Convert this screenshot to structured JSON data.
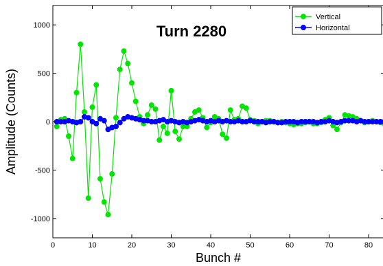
{
  "chart_data": {
    "type": "line",
    "title": "Turn 2280",
    "xlabel": "Bunch #",
    "ylabel": "Amplitude (Counts)",
    "xlim": [
      0,
      84
    ],
    "ylim": [
      -1200,
      1200
    ],
    "xticks": [
      0,
      10,
      20,
      30,
      40,
      50,
      60,
      70,
      80
    ],
    "yticks": [
      -1000,
      -500,
      0,
      500,
      1000
    ],
    "xtick_labels": [
      "0",
      "10",
      "20",
      "30",
      "40",
      "50",
      "60",
      "70",
      "80"
    ],
    "ytick_labels": [
      "-1000",
      "-500",
      "0",
      "500",
      "1000"
    ],
    "grid": false,
    "legend": "top-right",
    "series": [
      {
        "name": "Vertical",
        "color": "#00e600",
        "x": [
          1,
          2,
          3,
          4,
          5,
          6,
          7,
          8,
          9,
          10,
          11,
          12,
          13,
          14,
          15,
          16,
          17,
          18,
          19,
          20,
          21,
          22,
          23,
          24,
          25,
          26,
          27,
          28,
          29,
          30,
          31,
          32,
          33,
          34,
          35,
          36,
          37,
          38,
          39,
          40,
          41,
          42,
          43,
          44,
          45,
          46,
          47,
          48,
          49,
          50,
          51,
          52,
          53,
          54,
          55,
          56,
          57,
          58,
          59,
          60,
          61,
          62,
          63,
          64,
          65,
          66,
          67,
          68,
          69,
          70,
          71,
          72,
          73,
          74,
          75,
          76,
          77,
          78,
          79,
          80,
          81,
          82,
          83,
          84
        ],
        "y": [
          -50,
          20,
          30,
          -150,
          -380,
          300,
          800,
          100,
          -790,
          150,
          380,
          -590,
          -830,
          -960,
          -540,
          40,
          540,
          730,
          600,
          400,
          210,
          50,
          -20,
          70,
          170,
          130,
          -190,
          -50,
          -120,
          320,
          -100,
          -180,
          -50,
          -50,
          30,
          100,
          120,
          40,
          -60,
          -10,
          50,
          30,
          -130,
          -170,
          120,
          20,
          30,
          160,
          140,
          20,
          10,
          -20,
          0,
          10,
          10,
          0,
          -10,
          0,
          -10,
          -20,
          -30,
          -20,
          -20,
          -10,
          0,
          -20,
          -20,
          -10,
          20,
          40,
          -40,
          -80,
          -10,
          70,
          60,
          50,
          30,
          10,
          -10,
          0,
          10,
          0,
          -10,
          -20
        ]
      },
      {
        "name": "Horizontal",
        "color": "#0000ff",
        "x": [
          1,
          2,
          3,
          4,
          5,
          6,
          7,
          8,
          9,
          10,
          11,
          12,
          13,
          14,
          15,
          16,
          17,
          18,
          19,
          20,
          21,
          22,
          23,
          24,
          25,
          26,
          27,
          28,
          29,
          30,
          31,
          32,
          33,
          34,
          35,
          36,
          37,
          38,
          39,
          40,
          41,
          42,
          43,
          44,
          45,
          46,
          47,
          48,
          49,
          50,
          51,
          52,
          53,
          54,
          55,
          56,
          57,
          58,
          59,
          60,
          61,
          62,
          63,
          64,
          65,
          66,
          67,
          68,
          69,
          70,
          71,
          72,
          73,
          74,
          75,
          76,
          77,
          78,
          79,
          80,
          81,
          82,
          83,
          84
        ],
        "y": [
          0,
          0,
          0,
          10,
          0,
          -10,
          0,
          50,
          40,
          0,
          -20,
          30,
          10,
          -80,
          -60,
          -50,
          -10,
          30,
          50,
          40,
          30,
          20,
          10,
          10,
          0,
          0,
          10,
          20,
          0,
          10,
          0,
          -10,
          0,
          -10,
          0,
          10,
          20,
          10,
          0,
          10,
          0,
          10,
          0,
          10,
          0,
          0,
          10,
          0,
          0,
          10,
          0,
          0,
          0,
          -10,
          0,
          0,
          -10,
          -10,
          0,
          0,
          0,
          -10,
          0,
          0,
          0,
          0,
          -10,
          0,
          0,
          10,
          0,
          -10,
          0,
          10,
          10,
          10,
          0,
          10,
          0,
          0,
          0,
          0,
          0,
          0
        ]
      }
    ]
  }
}
